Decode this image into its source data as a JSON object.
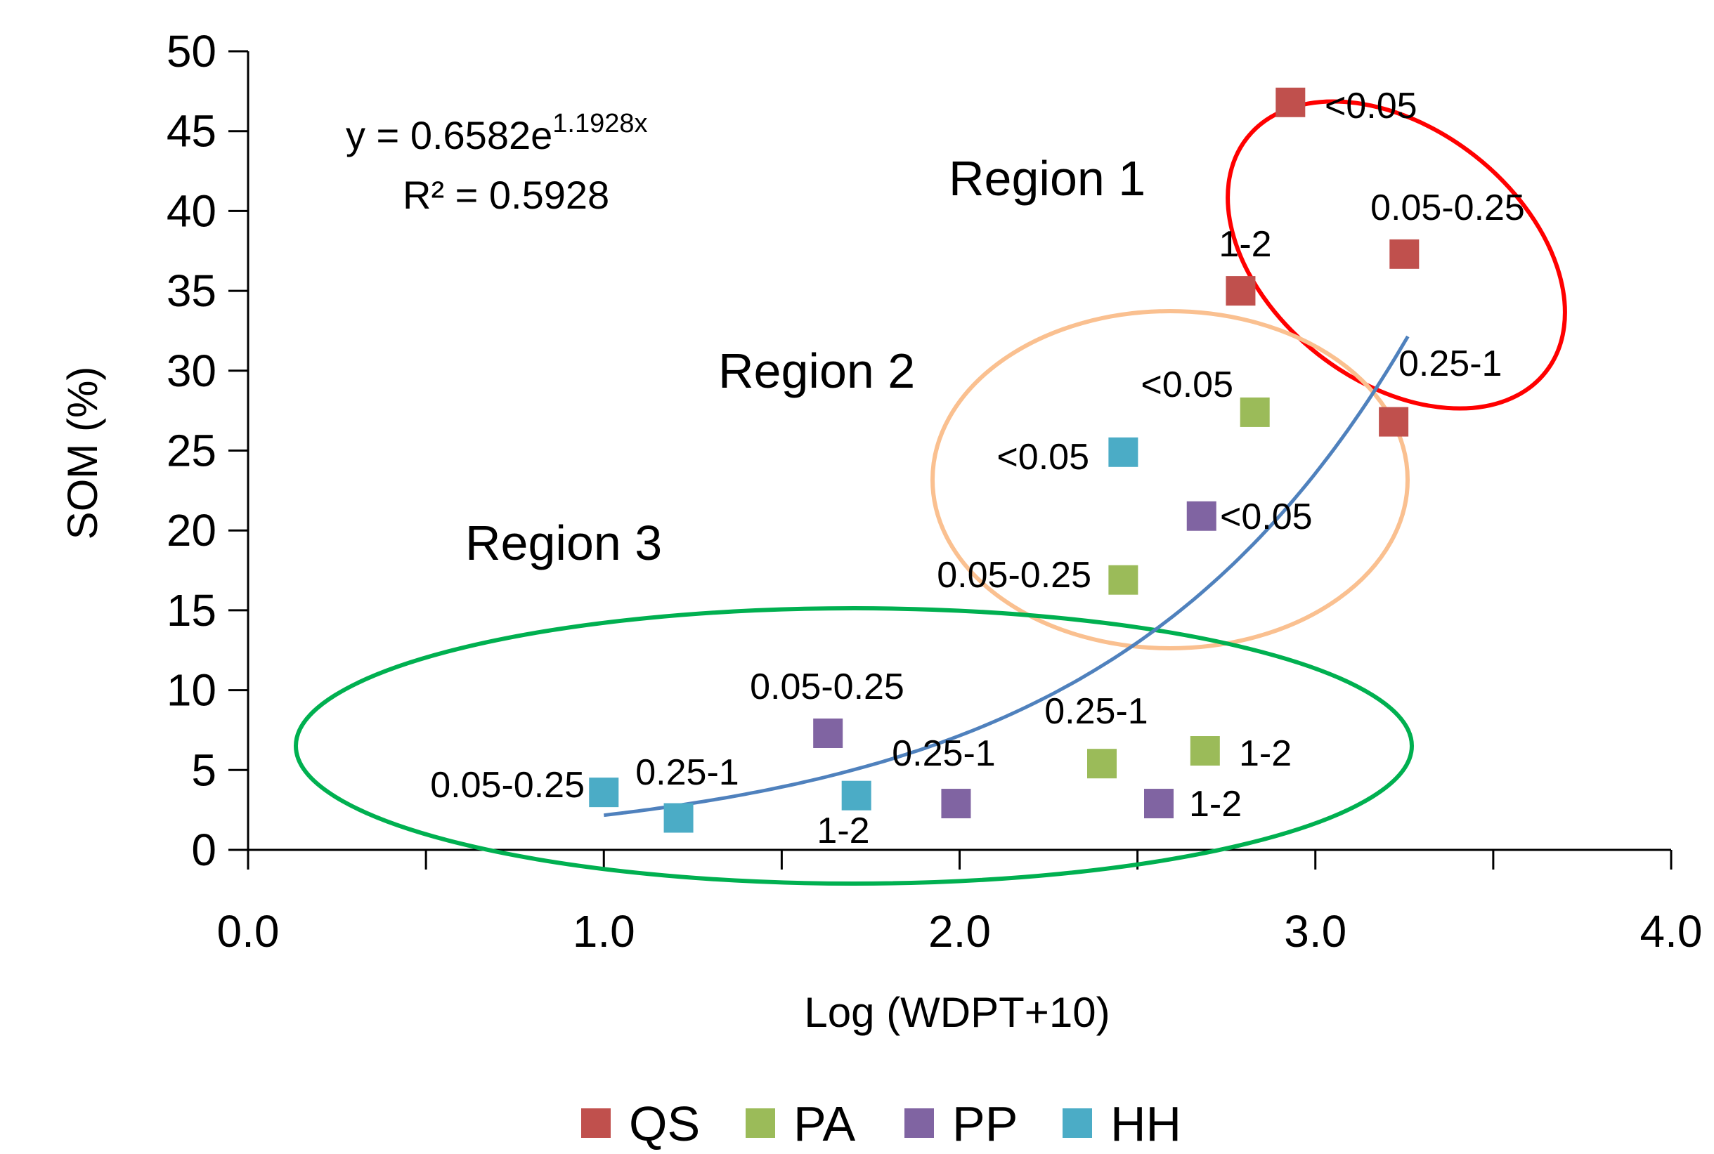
{
  "colors": {
    "QS": "#c0504d",
    "PA": "#9bbb59",
    "PP": "#8064a2",
    "HH": "#4bacc6",
    "trend": "#4f81bd",
    "region1": "#ff0000",
    "region2": "#fac090",
    "region3": "#00b050"
  },
  "chart_data": {
    "type": "scatter",
    "xlabel": "Log (WDPT+10)",
    "ylabel": "SOM (%)",
    "xlim": [
      0,
      4
    ],
    "ylim": [
      0,
      50
    ],
    "x_ticks": [
      "0.0",
      "1.0",
      "2.0",
      "3.0",
      "4.0"
    ],
    "y_ticks": [
      "0",
      "5",
      "10",
      "15",
      "20",
      "25",
      "30",
      "35",
      "40",
      "45",
      "50"
    ],
    "grid": false,
    "legend_position": "bottom",
    "legend": [
      "QS",
      "PA",
      "PP",
      "HH"
    ],
    "series": [
      {
        "name": "QS",
        "points": [
          {
            "x": 2.93,
            "y": 46.8,
            "label": "<0.05"
          },
          {
            "x": 3.25,
            "y": 37.3,
            "label": "0.05-0.25"
          },
          {
            "x": 3.22,
            "y": 26.8,
            "label": "0.25-1"
          },
          {
            "x": 2.79,
            "y": 35.0,
            "label": "1-2"
          }
        ]
      },
      {
        "name": "PA",
        "points": [
          {
            "x": 2.83,
            "y": 27.4,
            "label": "<0.05"
          },
          {
            "x": 2.46,
            "y": 16.9,
            "label": "0.05-0.25"
          },
          {
            "x": 2.4,
            "y": 5.4,
            "label": "0.25-1"
          },
          {
            "x": 2.69,
            "y": 6.2,
            "label": "1-2"
          }
        ]
      },
      {
        "name": "PP",
        "points": [
          {
            "x": 2.68,
            "y": 20.9,
            "label": "<0.05"
          },
          {
            "x": 1.63,
            "y": 7.3,
            "label": "0.05-0.25"
          },
          {
            "x": 1.99,
            "y": 2.9,
            "label": "0.25-1"
          },
          {
            "x": 2.56,
            "y": 2.9,
            "label": "1-2"
          }
        ]
      },
      {
        "name": "HH",
        "points": [
          {
            "x": 2.46,
            "y": 24.9,
            "label": "<0.05"
          },
          {
            "x": 1.0,
            "y": 3.6,
            "label": "0.05-0.25"
          },
          {
            "x": 1.21,
            "y": 2.0,
            "label": "0.25-1"
          },
          {
            "x": 1.71,
            "y": 3.4,
            "label": "1-2"
          }
        ]
      }
    ],
    "trendline": {
      "a": 0.6582,
      "b": 1.1928,
      "x_range": [
        1.0,
        3.26
      ],
      "equation_prefix": "y = 0.6582e",
      "equation_exponent": "1.1928x",
      "r2_text": "R² = 0.5928"
    },
    "regions": [
      {
        "name": "Region 1"
      },
      {
        "name": "Region 2"
      },
      {
        "name": "Region 3"
      }
    ]
  }
}
